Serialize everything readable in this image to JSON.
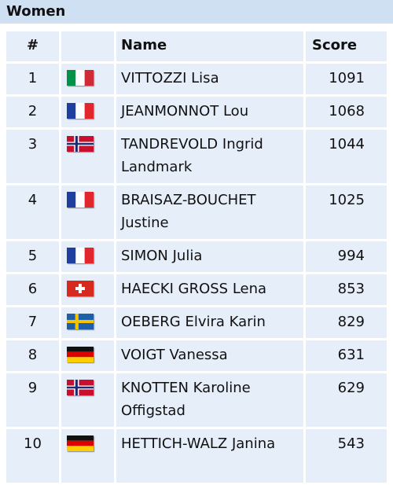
{
  "header": {
    "title": "Women"
  },
  "table": {
    "columns": [
      "#",
      "Name",
      "Score"
    ],
    "rows": [
      [
        1,
        "VITTOZZI Lisa",
        1091
      ],
      [
        2,
        "JEANMONNOT Lou",
        1068
      ],
      [
        3,
        "TANDREVOLD Ingrid Landmark",
        1044
      ],
      [
        4,
        "BRAISAZ-BOUCHET Justine",
        1025
      ],
      [
        5,
        "SIMON Julia",
        994
      ],
      [
        6,
        "HAECKI GROSS Lena",
        853
      ],
      [
        7,
        "OEBERG Elvira Karin",
        829
      ],
      [
        8,
        "VOIGT Vanessa",
        631
      ],
      [
        9,
        "KNOTTEN Karoline Offigstad",
        629
      ],
      [
        10,
        "HETTICH-WALZ Janina",
        543
      ]
    ]
  }
}
